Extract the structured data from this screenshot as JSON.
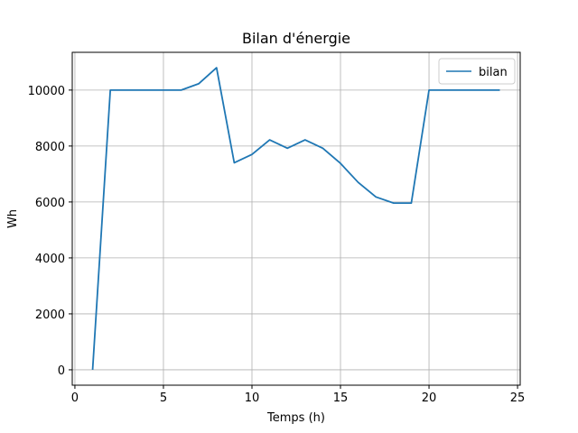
{
  "chart_data": {
    "type": "line",
    "title": "Bilan d'énergie",
    "xlabel": "Temps (h)",
    "ylabel": "Wh",
    "xlim": [
      -0.15,
      25.15
    ],
    "ylim": [
      -550,
      11350
    ],
    "xticks": [
      0,
      5,
      10,
      15,
      20,
      25
    ],
    "yticks": [
      0,
      2000,
      4000,
      6000,
      8000,
      10000
    ],
    "xtick_labels": [
      "0",
      "5",
      "10",
      "15",
      "20",
      "25"
    ],
    "ytick_labels": [
      "0",
      "2000",
      "4000",
      "6000",
      "8000",
      "10000"
    ],
    "grid": true,
    "legend_position": "top-right",
    "series": [
      {
        "name": "bilan",
        "color": "#1f77b4",
        "x": [
          1,
          2,
          3,
          4,
          5,
          6,
          7,
          8,
          9,
          10,
          11,
          12,
          13,
          14,
          15,
          16,
          17,
          18,
          19,
          20,
          21,
          22,
          23,
          24
        ],
        "y": [
          0,
          10000,
          10000,
          10000,
          10000,
          10000,
          10230,
          10800,
          7400,
          7700,
          8220,
          7920,
          8220,
          7920,
          7380,
          6700,
          6180,
          5960,
          5960,
          10000,
          10000,
          10000,
          10000,
          10000
        ]
      }
    ]
  }
}
